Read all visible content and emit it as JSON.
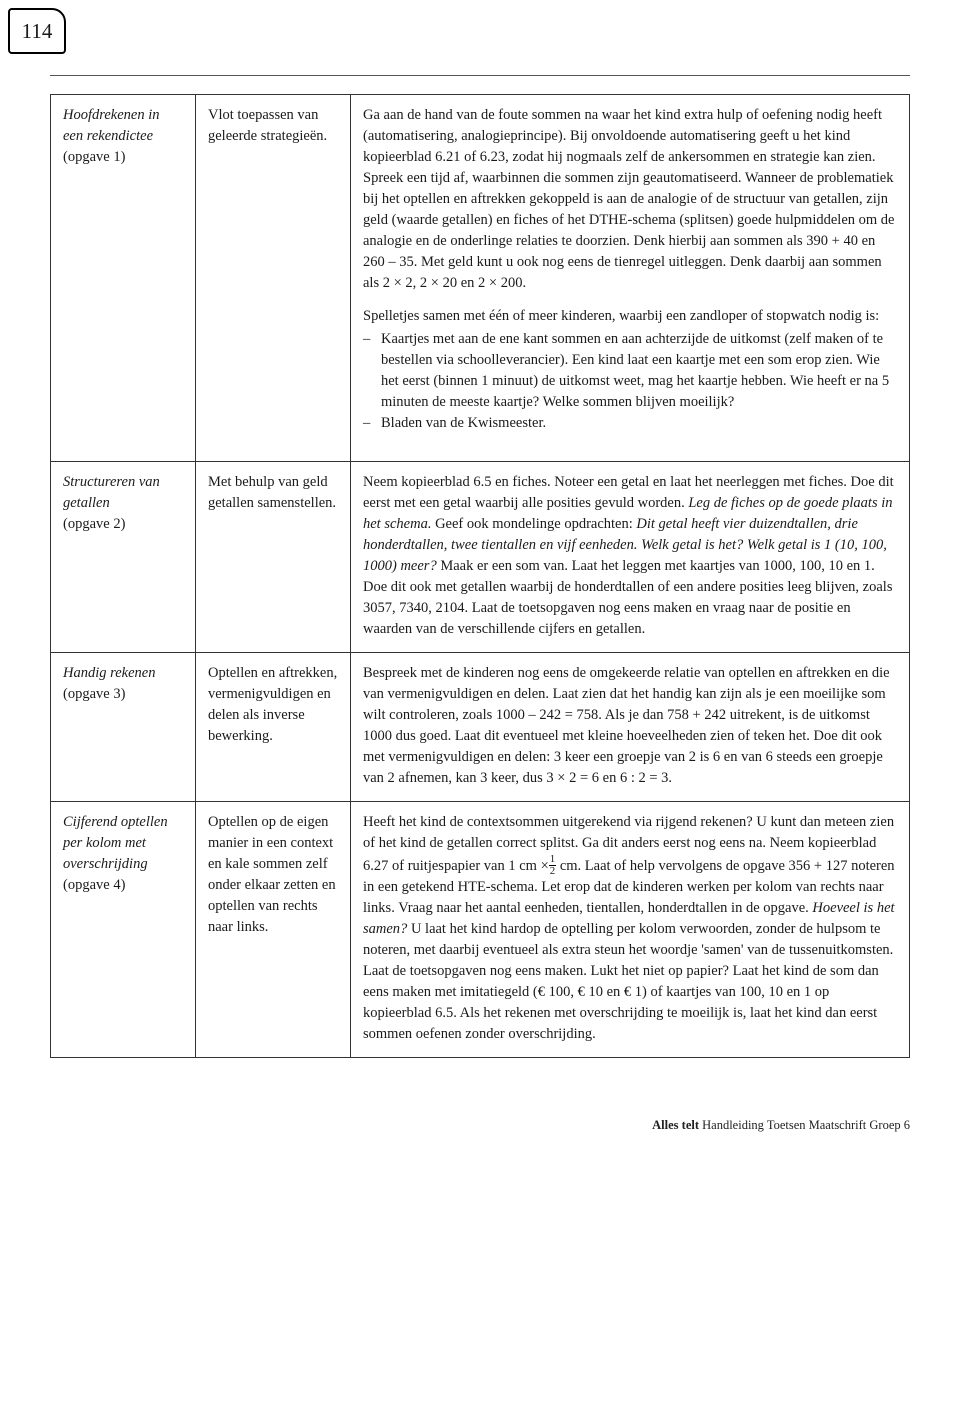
{
  "page_number": "114",
  "rows": [
    {
      "col1_title": "Hoofdrekenen in een rekendictee",
      "col1_sub": "(opgave 1)",
      "col2": "Vlot toepassen van geleerde strategieën.",
      "col3_p1": "Ga aan de hand van de foute sommen na waar het kind extra hulp of oefening nodig heeft (automatisering, analogieprincipe). Bij onvoldoende automatisering geeft u het kind kopieerblad 6.21 of 6.23, zodat hij nogmaals zelf de ankersommen en strategie kan zien. Spreek een tijd af, waarbinnen die sommen zijn geautomatiseerd. Wanneer de problematiek bij het optellen en aftrekken gekoppeld is aan de analogie of de structuur van getallen, zijn geld (waarde getallen) en fiches of het DTHE-schema (splitsen) goede hulpmiddelen om de analogie en de onderlinge relaties te doorzien. Denk hierbij aan sommen als 390 + 40 en 260 – 35. Met geld kunt u ook nog eens de tienregel uitleggen. Denk daarbij aan sommen als 2 × 2, 2 × 20 en 2 × 200.",
      "col3_p2_intro": "Spelletjes samen met één of meer kinderen, waarbij een zandloper of stopwatch nodig is:",
      "col3_p2_items": [
        "Kaartjes met aan de ene kant sommen en aan achterzijde de uitkomst (zelf maken of te bestellen via schoolleverancier). Een kind laat een kaartje met een som erop zien. Wie het eerst (binnen 1 minuut) de uitkomst weet, mag het kaartje hebben. Wie heeft er na 5 minuten de meeste kaartje? Welke sommen blijven moeilijk?",
        "Bladen van de Kwismeester."
      ]
    },
    {
      "col1_title": "Structureren van getallen",
      "col1_sub": "(opgave 2)",
      "col2": "Met behulp van geld getallen samenstellen.",
      "col3_before_it1": "Neem kopieerblad 6.5 en fiches. Noteer een getal en laat het neerleggen met fiches. Doe dit eerst met een getal waarbij alle posities gevuld worden. ",
      "col3_it1": "Leg de fiches op de goede plaats in het schema.",
      "col3_mid1": " Geef ook mondelinge opdrachten: ",
      "col3_it2": "Dit getal heeft vier duizendtallen, drie honderdtallen, twee tientallen en vijf eenheden. Welk getal is het? Welk getal is 1 (10, 100, 1000) meer?",
      "col3_after_it2": " Maak er een som van. Laat het leggen met kaartjes van 1000, 100, 10 en 1. Doe dit ook met getallen waarbij de honderdtallen of een andere posities leeg blijven, zoals 3057, 7340, 2104. Laat de toetsopgaven nog eens maken en vraag naar de positie en waarden van de verschillende cijfers en getallen."
    },
    {
      "col1_title": "Handig rekenen",
      "col1_sub": "(opgave 3)",
      "col2": "Optellen en aftrekken, vermenigvuldigen en delen als inverse bewerking.",
      "col3_p1": "Bespreek met de kinderen nog eens de omgekeerde relatie van optellen en aftrekken en die van vermenigvuldigen en delen. Laat zien dat het handig kan zijn als je een moeilijke som wilt controleren, zoals 1000 – 242 = 758. Als je dan 758 + 242 uitrekent, is de uitkomst 1000 dus goed. Laat dit eventueel met kleine hoeveelheden zien of teken het. Doe dit ook met vermenigvuldigen en delen: 3 keer een groepje van 2 is 6 en van 6 steeds een groepje van 2 afnemen, kan 3 keer, dus 3 × 2 = 6 en 6 : 2 = 3."
    },
    {
      "col1_title": "Cijferend optellen per kolom met overschrijding",
      "col1_sub": "(opgave 4)",
      "col2": "Optellen op de eigen manier in een context en kale sommen zelf onder elkaar zetten en optellen van rechts naar links.",
      "col3_before": "Heeft het kind de contextsommen uitgerekend via rijgend rekenen? U kunt dan meteen zien of het kind de getallen correct splitst. Ga dit anders eerst nog eens na. Neem kopieerblad 6.27 of ruitjespapier van 1 cm ×",
      "col3_frac_n": "1",
      "col3_frac_d": "2",
      "col3_mid": " cm. Laat of help vervolgens de opgave 356 + 127 noteren in een getekend HTE-schema. Let erop dat de kinderen werken per kolom van rechts naar links. Vraag naar het aantal eenheden, tientallen, honderdtallen in de opgave. ",
      "col3_it1": "Hoeveel is het samen?",
      "col3_after": " U laat het kind hardop de optelling per kolom verwoorden, zonder de hulpsom te noteren, met daarbij eventueel als extra steun het woordje 'samen' van de tussenuitkomsten. Laat de toetsopgaven nog eens maken. Lukt het niet op papier? Laat het kind de som dan eens maken met imitatiegeld (€ 100, € 10 en € 1) of kaartjes van 100, 10 en 1 op kopieerblad 6.5. Als het rekenen met overschrijding te moeilijk is, laat het kind dan eerst sommen oefenen zonder overschrijding."
    }
  ],
  "footer_bold": "Alles telt",
  "footer_rest": " Handleiding Toetsen Maatschrift Groep 6"
}
